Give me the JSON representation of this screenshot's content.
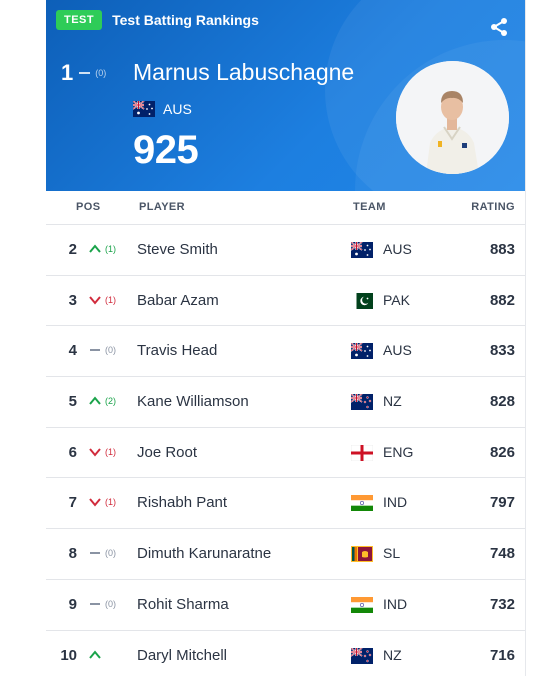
{
  "header": {
    "badge": "TEST",
    "title": "Test Batting Rankings"
  },
  "top_player": {
    "pos": "1",
    "change": "(0)",
    "movement": "same",
    "name": "Marnus Labuschagne",
    "team": "AUS",
    "flag": "aus-flag-icon",
    "rating": "925"
  },
  "columns": {
    "pos": "POS",
    "player": "PLAYER",
    "team": "TEAM",
    "rating": "RATING"
  },
  "colors": {
    "up": "#1aa34a",
    "down": "#d12b3c",
    "same": "#8a93a3",
    "hero": "#1a73d6"
  },
  "rows": [
    {
      "pos": "2",
      "movement": "up",
      "change": "(1)",
      "name": "Steve Smith",
      "team": "AUS",
      "rating": "883"
    },
    {
      "pos": "3",
      "movement": "down",
      "change": "(1)",
      "name": "Babar Azam",
      "team": "PAK",
      "rating": "882"
    },
    {
      "pos": "4",
      "movement": "same",
      "change": "(0)",
      "name": "Travis Head",
      "team": "AUS",
      "rating": "833"
    },
    {
      "pos": "5",
      "movement": "up",
      "change": "(2)",
      "name": "Kane Williamson",
      "team": "NZ",
      "rating": "828"
    },
    {
      "pos": "6",
      "movement": "down",
      "change": "(1)",
      "name": "Joe Root",
      "team": "ENG",
      "rating": "826"
    },
    {
      "pos": "7",
      "movement": "down",
      "change": "(1)",
      "name": "Rishabh Pant",
      "team": "IND",
      "rating": "797"
    },
    {
      "pos": "8",
      "movement": "same",
      "change": "(0)",
      "name": "Dimuth Karunaratne",
      "team": "SL",
      "rating": "748"
    },
    {
      "pos": "9",
      "movement": "same",
      "change": "(0)",
      "name": "Rohit Sharma",
      "team": "IND",
      "rating": "732"
    },
    {
      "pos": "10",
      "movement": "up",
      "change": "",
      "name": "Daryl Mitchell",
      "team": "NZ",
      "rating": "716"
    }
  ]
}
